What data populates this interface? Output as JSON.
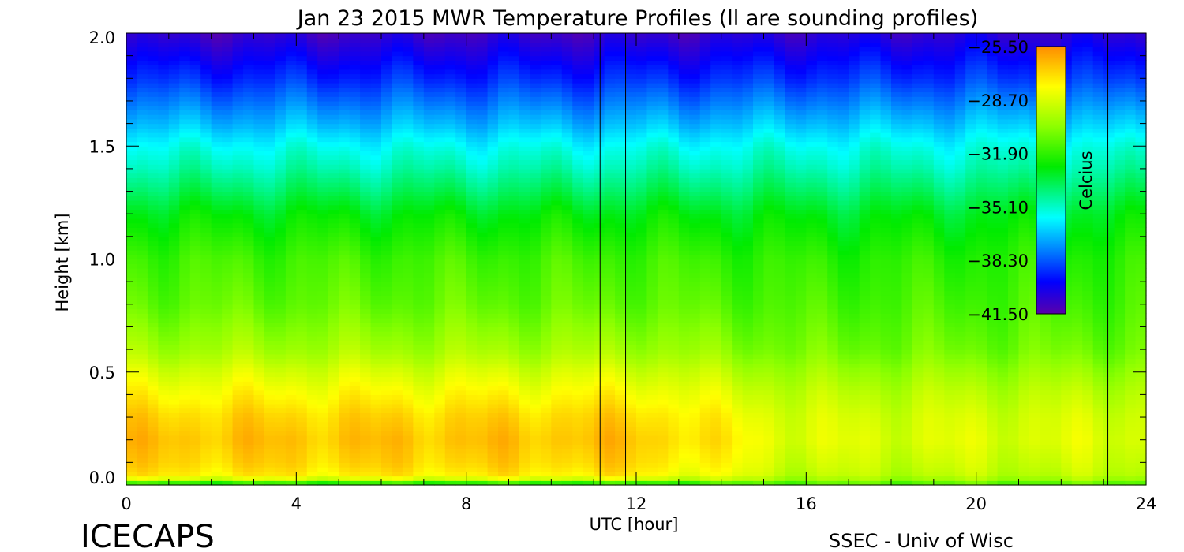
{
  "chart_data": {
    "type": "heatmap",
    "title": "Jan 23 2015 MWR Temperature Profiles (ll are sounding profiles)",
    "xlabel": "UTC [hour]",
    "ylabel": "Height [km]",
    "xlim": [
      0,
      24
    ],
    "ylim": [
      0,
      2
    ],
    "x_ticks": [
      "0",
      "4",
      "8",
      "12",
      "16",
      "20",
      "24"
    ],
    "y_ticks": [
      "0.0",
      "0.5",
      "1.0",
      "1.5",
      "2.0"
    ],
    "sounding_times_utc": [
      11.15,
      11.75,
      23.1
    ],
    "colorbar": {
      "label": "Celcius",
      "placement": "top-right",
      "min": -41.5,
      "max": -25.5,
      "tick_labels": [
        "-25.50",
        "-28.70",
        "-31.90",
        "-35.10",
        "-38.30",
        "-41.50"
      ]
    },
    "profile_levels": {
      "heights_km": [
        0.0,
        0.02,
        0.05,
        0.1,
        0.2,
        0.3,
        0.4,
        0.5,
        0.6,
        0.8,
        1.0,
        1.2,
        1.4,
        1.5,
        1.6,
        1.8,
        2.0
      ],
      "temperature_c_early": [
        -34.5,
        -29.0,
        -27.5,
        -27.0,
        -26.6,
        -27.0,
        -27.8,
        -28.7,
        -29.8,
        -31.0,
        -31.6,
        -32.8,
        -34.8,
        -35.6,
        -36.8,
        -39.0,
        -40.8
      ],
      "temperature_c_late": [
        -32.0,
        -30.0,
        -29.3,
        -29.0,
        -28.6,
        -28.8,
        -29.3,
        -30.0,
        -30.8,
        -31.5,
        -32.0,
        -33.0,
        -34.8,
        -35.5,
        -36.6,
        -38.8,
        -40.5
      ]
    },
    "notes_visible": {
      "branding": "ICECAPS",
      "credit": "SSEC - Univ of Wisc"
    }
  }
}
